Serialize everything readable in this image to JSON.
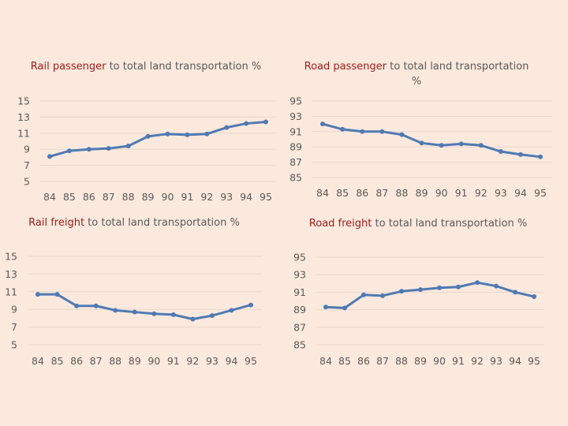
{
  "colors": {
    "background": "#fce9dd",
    "line": "#4f7ab3",
    "title_highlight": "#9b1c1c",
    "text": "#595959",
    "grid": "#e8d8cc"
  },
  "chart_data": [
    {
      "type": "line",
      "title_highlight": "Rail passenger",
      "title_rest": " to total land transportation %",
      "categories": [
        "84",
        "85",
        "86",
        "87",
        "88",
        "89",
        "90",
        "91",
        "92",
        "93",
        "94",
        "95"
      ],
      "values": [
        8.1,
        8.8,
        9.0,
        9.1,
        9.4,
        10.6,
        10.9,
        10.8,
        10.9,
        11.7,
        12.2,
        12.4
      ],
      "yticks": [
        15,
        13,
        11,
        9,
        7,
        5
      ],
      "ylim": [
        5,
        15
      ],
      "grid": true
    },
    {
      "type": "line",
      "title_highlight": "Road passenger",
      "title_rest": " to total land transportation %",
      "categories": [
        "84",
        "85",
        "86",
        "87",
        "88",
        "89",
        "90",
        "91",
        "92",
        "93",
        "94",
        "95"
      ],
      "values": [
        92.0,
        91.3,
        91.0,
        91.0,
        90.6,
        89.5,
        89.2,
        89.4,
        89.2,
        88.4,
        88.0,
        87.7
      ],
      "yticks": [
        95,
        93,
        91,
        89,
        87,
        85
      ],
      "ylim": [
        85,
        95
      ],
      "grid": true
    },
    {
      "type": "line",
      "title_highlight": "Rail freight",
      "title_rest": " to total land transportation %",
      "categories": [
        "84",
        "85",
        "86",
        "87",
        "88",
        "89",
        "90",
        "91",
        "92",
        "93",
        "94",
        "95"
      ],
      "values": [
        10.7,
        10.7,
        9.4,
        9.4,
        8.9,
        8.7,
        8.5,
        8.4,
        7.9,
        8.3,
        8.9,
        9.5
      ],
      "yticks": [
        15,
        13,
        11,
        9,
        7,
        5
      ],
      "ylim": [
        5,
        15
      ],
      "grid": true
    },
    {
      "type": "line",
      "title_highlight": "Road freight",
      "title_rest": " to total land transportation %",
      "categories": [
        "84",
        "85",
        "86",
        "87",
        "88",
        "89",
        "90",
        "91",
        "92",
        "93",
        "94",
        "95"
      ],
      "values": [
        89.3,
        89.2,
        90.7,
        90.6,
        91.1,
        91.3,
        91.5,
        91.6,
        92.1,
        91.7,
        91.0,
        90.5
      ],
      "yticks": [
        95,
        93,
        91,
        89,
        87,
        85
      ],
      "ylim": [
        85,
        95
      ],
      "grid": true
    }
  ]
}
